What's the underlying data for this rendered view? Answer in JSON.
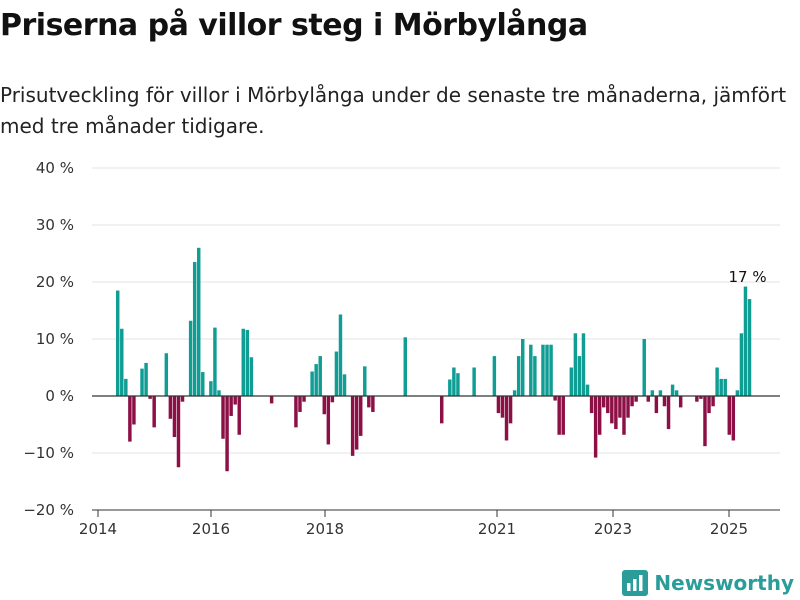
{
  "header": {
    "title": "Priserna på villor steg i Mörbylånga",
    "subtitle": "Prisutveckling för villor i Mörbylånga under de senaste tre månaderna, jämfört med tre månader tidigare."
  },
  "brand": {
    "name": "Newsworthy",
    "icon": "newsworthy-logo-icon",
    "color": "#2a9d9a"
  },
  "colors": {
    "positive": "#0f9d94",
    "negative": "#8c0f45",
    "grid": "#e3e3e3",
    "zero_line": "#333333"
  },
  "chart_data": {
    "type": "bar",
    "title": "Priserna på villor steg i Mörbylånga",
    "xlabel": "",
    "ylabel": "",
    "ylim": [
      -20,
      40
    ],
    "y_ticks": [
      {
        "value": -20,
        "label": "−20 %"
      },
      {
        "value": -10,
        "label": "−10 %"
      },
      {
        "value": 0,
        "label": "0 %"
      },
      {
        "value": 10,
        "label": "10 %"
      },
      {
        "value": 20,
        "label": "20 %"
      },
      {
        "value": 30,
        "label": "30 %"
      },
      {
        "value": 40,
        "label": "40 %"
      }
    ],
    "x_ticks": [
      "2014",
      "2016",
      "2018",
      "2021",
      "2023",
      "2025"
    ],
    "grid": true,
    "legend": "none",
    "annotations": [
      {
        "label": "17 %",
        "at": "last"
      }
    ],
    "values": [
      18.5,
      11.8,
      3,
      -8,
      -5,
      0,
      4.8,
      5.8,
      -0.5,
      -5.5,
      0,
      0,
      7.5,
      -4,
      -7.2,
      -12.5,
      -1,
      0,
      13.2,
      23.5,
      26,
      4.2,
      0,
      2.6,
      12,
      1,
      -7.5,
      -13.2,
      -3.5,
      -1.5,
      -6.8,
      11.8,
      11.6,
      6.8,
      0,
      0,
      0,
      0,
      -1.3,
      0,
      0,
      0,
      0,
      0,
      -5.5,
      -2.8,
      -1,
      0,
      4.3,
      5.6,
      7,
      -3.2,
      -8.5,
      -1.1,
      7.8,
      14.3,
      3.8,
      0,
      -10.5,
      -9.4,
      -7,
      5.2,
      -2,
      -2.8,
      0,
      0,
      0,
      0,
      0,
      0,
      0,
      10.3,
      0,
      0,
      0,
      0,
      0,
      0,
      0,
      0,
      -4.8,
      0,
      2.9,
      5,
      4,
      0,
      0,
      0,
      5,
      0,
      0,
      0,
      0,
      7,
      -3,
      -3.8,
      -7.8,
      -4.8,
      1,
      7,
      10,
      0,
      9,
      7,
      0,
      9,
      9,
      9,
      -0.8,
      -6.8,
      -6.8,
      0,
      5,
      11,
      7,
      11,
      2,
      -3,
      -10.8,
      -6.8,
      -2,
      -3,
      -4.8,
      -5.8,
      -3.8,
      -6.8,
      -3.8,
      -1.8,
      -1,
      0,
      10,
      -1,
      1,
      -3,
      1,
      -1.8,
      -5.8,
      2,
      1,
      -2,
      0,
      0,
      0,
      -1,
      -0.5,
      -8.8,
      -3,
      -1.8,
      5,
      3,
      3,
      -6.8,
      -7.8,
      1,
      11,
      19.2,
      17
    ]
  }
}
